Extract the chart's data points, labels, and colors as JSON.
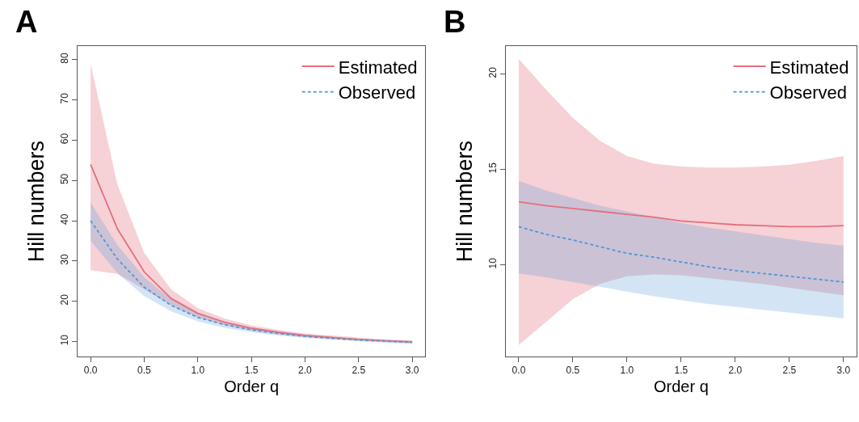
{
  "chart_data": [
    {
      "type": "line",
      "title": "A",
      "xlabel": "Order q",
      "ylabel": "Hill numbers",
      "xlim": [
        -0.12,
        3.12
      ],
      "ylim": [
        6.3,
        83.3
      ],
      "xticks": [
        {
          "value": 0,
          "label": "0.0"
        },
        {
          "value": 0.5,
          "label": "0.5"
        },
        {
          "value": 1,
          "label": "1.0"
        },
        {
          "value": 1.5,
          "label": "1.5"
        },
        {
          "value": 2,
          "label": "2.0"
        },
        {
          "value": 2.5,
          "label": "2.5"
        },
        {
          "value": 3,
          "label": "3.0"
        }
      ],
      "yticks": [
        10,
        20,
        30,
        40,
        50,
        60,
        70,
        80
      ],
      "legend": "top right",
      "marker": "none",
      "x": [
        0,
        0.25,
        0.5,
        0.75,
        1,
        1.25,
        1.5,
        1.75,
        2,
        2.25,
        2.5,
        2.75,
        3
      ],
      "series": [
        {
          "name": "Estimated",
          "color": "#e36f7e",
          "line_style": "solid",
          "values": [
            54,
            38,
            27.3,
            20.7,
            17,
            14.8,
            13.3,
            12.3,
            11.5,
            11,
            10.5,
            10.2,
            9.9
          ],
          "lower": [
            27.7,
            26.8,
            23,
            19,
            16,
            14,
            12.7,
            11.8,
            11.1,
            10.6,
            10.2,
            9.9,
            9.6
          ],
          "upper": [
            79,
            49,
            32,
            23,
            18.3,
            15.7,
            14,
            12.9,
            12,
            11.45,
            10.9,
            10.5,
            10.3
          ]
        },
        {
          "name": "Observed",
          "color": "#4f97d6",
          "line_style": "dashed",
          "values": [
            40,
            30.5,
            23.5,
            19,
            16,
            14.2,
            12.9,
            12,
            11.3,
            10.8,
            10.4,
            10.1,
            9.8
          ],
          "lower": [
            35,
            27,
            21.3,
            17.5,
            15,
            13.4,
            12.3,
            11.5,
            10.9,
            10.4,
            10.05,
            9.7,
            9.4
          ],
          "upper": [
            44.5,
            34,
            26,
            20.5,
            17,
            15,
            13.5,
            12.5,
            11.7,
            11.1,
            10.7,
            10.3,
            10.1
          ]
        }
      ]
    },
    {
      "type": "line",
      "title": "B",
      "xlabel": "Order q",
      "ylabel": "Hill numbers",
      "xlim": [
        -0.12,
        3.12
      ],
      "ylim": [
        5.2,
        21.45
      ],
      "xticks": [
        {
          "value": 0,
          "label": "0.0"
        },
        {
          "value": 0.5,
          "label": "0.5"
        },
        {
          "value": 1,
          "label": "1.0"
        },
        {
          "value": 1.5,
          "label": "1.5"
        },
        {
          "value": 2,
          "label": "2.0"
        },
        {
          "value": 2.5,
          "label": "2.5"
        },
        {
          "value": 3,
          "label": "3.0"
        }
      ],
      "yticks": [
        10,
        15,
        20
      ],
      "legend": "top right",
      "marker": "none",
      "x": [
        0,
        0.25,
        0.5,
        0.75,
        1,
        1.25,
        1.5,
        1.75,
        2,
        2.25,
        2.5,
        2.75,
        3
      ],
      "series": [
        {
          "name": "Estimated",
          "color": "#e36f7e",
          "line_style": "solid",
          "values": [
            13.3,
            13.1,
            12.95,
            12.8,
            12.65,
            12.5,
            12.3,
            12.2,
            12.1,
            12.05,
            12.0,
            12.0,
            12.05
          ],
          "lower": [
            5.8,
            7.0,
            8.2,
            9.0,
            9.4,
            9.5,
            9.45,
            9.3,
            9.15,
            9.0,
            8.8,
            8.6,
            8.4
          ],
          "upper": [
            20.8,
            19.2,
            17.7,
            16.5,
            15.7,
            15.3,
            15.15,
            15.1,
            15.1,
            15.15,
            15.25,
            15.45,
            15.7
          ]
        },
        {
          "name": "Observed",
          "color": "#4f97d6",
          "line_style": "dashed",
          "values": [
            12.0,
            11.6,
            11.3,
            10.95,
            10.6,
            10.4,
            10.15,
            9.9,
            9.7,
            9.55,
            9.4,
            9.25,
            9.1
          ],
          "lower": [
            9.55,
            9.35,
            9.1,
            8.85,
            8.6,
            8.35,
            8.15,
            7.95,
            7.8,
            7.65,
            7.5,
            7.35,
            7.2
          ],
          "upper": [
            14.4,
            13.9,
            13.5,
            13.1,
            12.8,
            12.5,
            12.2,
            11.95,
            11.75,
            11.55,
            11.35,
            11.15,
            11.0
          ]
        }
      ]
    }
  ]
}
